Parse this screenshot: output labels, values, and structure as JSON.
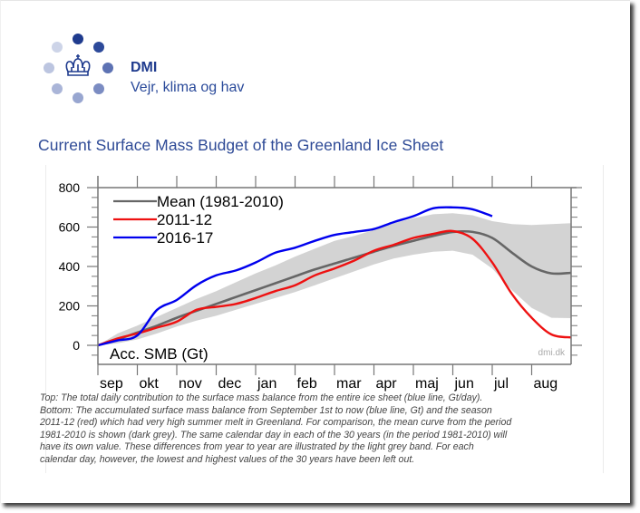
{
  "brand": {
    "name": "DMI",
    "tagline": "Vejr, klima og hav",
    "logo_icon": "crown-with-dots-icon",
    "colors": {
      "dark": "#1f3b8e",
      "mid": "#5a6fb0",
      "light": "#c8cfe3"
    }
  },
  "page": {
    "title": "Current Surface Mass Budget of the Greenland Ice Sheet"
  },
  "chart_data": {
    "type": "line",
    "title": "",
    "ylabel": "Acc. SMB (Gt)",
    "xlabel": "",
    "watermark": "dmi.dk",
    "ylim": [
      -100,
      800
    ],
    "xlim": [
      0,
      12
    ],
    "yticks": [
      0,
      200,
      400,
      600,
      800
    ],
    "xtick_labels": [
      "sep",
      "okt",
      "nov",
      "dec",
      "jan",
      "feb",
      "mar",
      "apr",
      "maj",
      "jun",
      "jul",
      "aug"
    ],
    "x_unit": "months since Sep 1",
    "legend": {
      "placement": "top-left",
      "entries": [
        "Mean (1981-2010)",
        "2011-12",
        "2016-17"
      ]
    },
    "grid": false,
    "x": [
      0,
      0.5,
      1,
      1.5,
      2,
      2.5,
      3,
      3.5,
      4,
      4.5,
      5,
      5.5,
      6,
      6.5,
      7,
      7.5,
      8,
      8.5,
      9,
      9.5,
      10,
      10.5,
      11,
      11.5,
      12
    ],
    "series": [
      {
        "name": "Mean (1981-2010)",
        "color": "#666666",
        "values": [
          0,
          30,
          65,
          100,
          140,
          175,
          210,
          245,
          280,
          315,
          350,
          385,
          415,
          445,
          475,
          505,
          530,
          555,
          575,
          575,
          545,
          470,
          400,
          365,
          368
        ]
      },
      {
        "name": "2011-12",
        "color": "#ee1111",
        "values": [
          0,
          35,
          60,
          90,
          120,
          180,
          195,
          210,
          240,
          275,
          305,
          355,
          390,
          430,
          480,
          510,
          545,
          565,
          580,
          540,
          420,
          260,
          140,
          55,
          40
        ]
      },
      {
        "name": "2016-17",
        "color": "#0000ee",
        "values": [
          0,
          25,
          50,
          180,
          230,
          305,
          355,
          380,
          420,
          470,
          495,
          530,
          560,
          575,
          590,
          625,
          655,
          695,
          700,
          690,
          655,
          null,
          null,
          null,
          null
        ]
      }
    ],
    "band": {
      "name": "range (1981-2010, extremes excluded)",
      "color": "#d3d3d3",
      "upper": [
        0,
        60,
        100,
        145,
        190,
        235,
        275,
        320,
        365,
        405,
        450,
        490,
        530,
        555,
        585,
        620,
        645,
        665,
        670,
        660,
        630,
        615,
        610,
        615,
        620
      ],
      "lower": [
        0,
        10,
        30,
        60,
        95,
        125,
        150,
        180,
        210,
        240,
        270,
        305,
        340,
        375,
        410,
        440,
        460,
        475,
        480,
        460,
        390,
        280,
        190,
        140,
        138
      ]
    }
  },
  "caption": {
    "lines": [
      "Top: The total daily contribution to the surface mass balance from the entire ice sheet (blue line, Gt/day).",
      "Bottom: The accumulated surface mass balance from September 1st to now (blue line, Gt) and the season",
      "2011-12 (red) which had very high summer melt in Greenland. For comparison, the mean curve from the period",
      "1981-2010 is shown (dark grey). The same calendar day in each of the 30 years (in the period 1981-2010) will",
      "have its own value. These differences from year to year are illustrated by the light grey band. For each",
      "calendar day, however, the lowest and highest values of the 30 years have been left out."
    ]
  }
}
